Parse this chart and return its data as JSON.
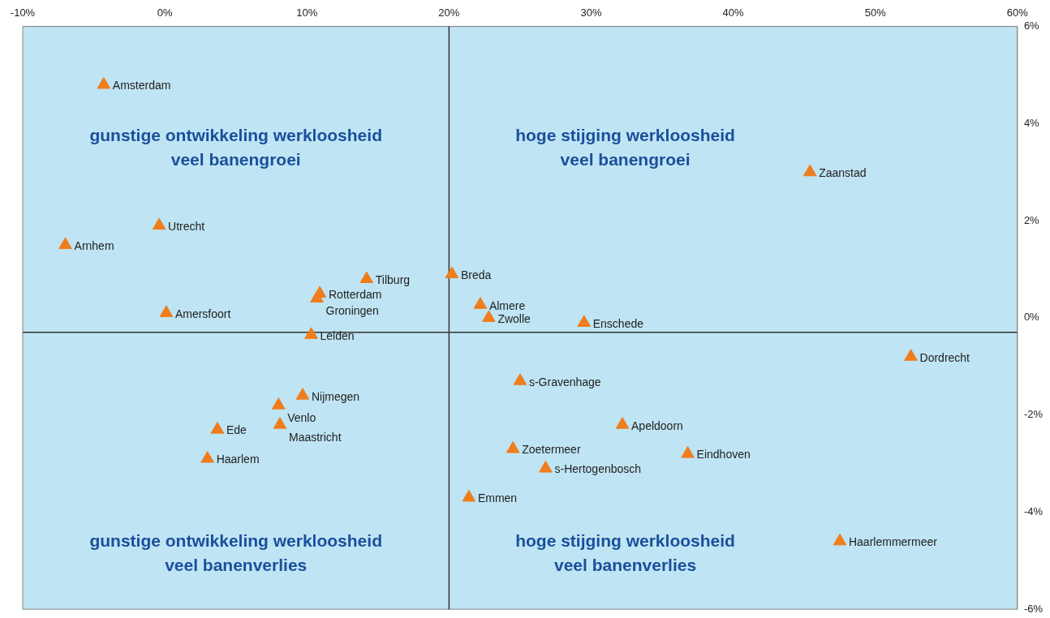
{
  "chart_data": {
    "type": "scatter",
    "marker": "triangle",
    "legend": false,
    "grid": false,
    "xlim": [
      -10,
      60
    ],
    "xticks": [
      {
        "value": -10,
        "label": "-10%"
      },
      {
        "value": 0,
        "label": "0%"
      },
      {
        "value": 10,
        "label": "10%"
      },
      {
        "value": 20,
        "label": "20%"
      },
      {
        "value": 30,
        "label": "30%"
      },
      {
        "value": 40,
        "label": "40%"
      },
      {
        "value": 50,
        "label": "50%"
      },
      {
        "value": 60,
        "label": "60%"
      }
    ],
    "ylim": [
      -6,
      6
    ],
    "yticks": [
      {
        "value": -6,
        "label": "-6%"
      },
      {
        "value": -4,
        "label": "-4%"
      },
      {
        "value": -2,
        "label": "-2%"
      },
      {
        "value": 0,
        "label": "0%"
      },
      {
        "value": 2,
        "label": "2%"
      },
      {
        "value": 4,
        "label": "4%"
      },
      {
        "value": 6,
        "label": "6%"
      }
    ],
    "ref_lines": [
      {
        "axis": "x",
        "value": 20,
        "color": "#333333"
      },
      {
        "axis": "y",
        "value": -0.3,
        "color": "#333333"
      }
    ],
    "annotations": [
      "gunstige ontwikkeling werkloosheid\nveel banengroei",
      "hoge stijging werkloosheid\nveel banengroei",
      "gunstige ontwikkeling werkloosheid\nveel banenverlies",
      "hoge stijging werkloosheid\nveel banenverlies"
    ],
    "series": [
      {
        "name": "Amsterdam",
        "color": "#f07d1c",
        "x": [
          -4.3
        ],
        "values": [
          4.8
        ]
      },
      {
        "name": "Utrecht",
        "color": "#f07d1c",
        "x": [
          -0.4
        ],
        "values": [
          1.9
        ]
      },
      {
        "name": "Arnhem",
        "color": "#f07d1c",
        "x": [
          -7.0
        ],
        "values": [
          1.5
        ]
      },
      {
        "name": "Amersfoort",
        "color": "#f07d1c",
        "x": [
          0.1
        ],
        "values": [
          0.1
        ]
      },
      {
        "name": "Tilburg",
        "color": "#f07d1c",
        "x": [
          14.2
        ],
        "values": [
          0.8
        ]
      },
      {
        "name": "Rotterdam",
        "color": "#f07d1c",
        "x": [
          10.9
        ],
        "values": [
          0.5
        ]
      },
      {
        "name": "Groningen",
        "color": "#f07d1c",
        "x": [
          10.7
        ],
        "values": [
          0.4
        ]
      },
      {
        "name": "Leiden",
        "color": "#f07d1c",
        "x": [
          10.3
        ],
        "values": [
          -0.35
        ]
      },
      {
        "name": "Breda",
        "color": "#f07d1c",
        "x": [
          20.2
        ],
        "values": [
          0.9
        ]
      },
      {
        "name": "Almere",
        "color": "#f07d1c",
        "x": [
          22.2
        ],
        "values": [
          0.27
        ]
      },
      {
        "name": "Zwolle",
        "color": "#f07d1c",
        "x": [
          22.8
        ],
        "values": [
          0.0
        ]
      },
      {
        "name": "Enschede",
        "color": "#f07d1c",
        "x": [
          29.5
        ],
        "values": [
          -0.1
        ]
      },
      {
        "name": "Zaanstad",
        "color": "#f07d1c",
        "x": [
          45.4
        ],
        "values": [
          3.0
        ]
      },
      {
        "name": "Dordrecht",
        "color": "#f07d1c",
        "x": [
          52.5
        ],
        "values": [
          -0.8
        ]
      },
      {
        "name": "s-Gravenhage",
        "color": "#f07d1c",
        "x": [
          25.0
        ],
        "values": [
          -1.3
        ]
      },
      {
        "name": "Apeldoorn",
        "color": "#f07d1c",
        "x": [
          32.2
        ],
        "values": [
          -2.2
        ]
      },
      {
        "name": "Eindhoven",
        "color": "#f07d1c",
        "x": [
          36.8
        ],
        "values": [
          -2.8
        ]
      },
      {
        "name": "Zoetermeer",
        "color": "#f07d1c",
        "x": [
          24.5
        ],
        "values": [
          -2.7
        ]
      },
      {
        "name": "s-Hertogenbosch",
        "color": "#f07d1c",
        "x": [
          26.8
        ],
        "values": [
          -3.1
        ]
      },
      {
        "name": "Emmen",
        "color": "#f07d1c",
        "x": [
          21.4
        ],
        "values": [
          -3.7
        ]
      },
      {
        "name": "Haarlemmermeer",
        "color": "#f07d1c",
        "x": [
          47.5
        ],
        "values": [
          -4.6
        ]
      },
      {
        "name": "Nijmegen",
        "color": "#f07d1c",
        "x": [
          9.7
        ],
        "values": [
          -1.6
        ]
      },
      {
        "name": "Venlo",
        "color": "#f07d1c",
        "x": [
          8.0
        ],
        "values": [
          -1.8
        ]
      },
      {
        "name": "Maastricht",
        "color": "#f07d1c",
        "x": [
          8.1
        ],
        "values": [
          -2.2
        ]
      },
      {
        "name": "Ede",
        "color": "#f07d1c",
        "x": [
          3.7
        ],
        "values": [
          -2.3
        ]
      },
      {
        "name": "Haarlem",
        "color": "#f07d1c",
        "x": [
          3.0
        ],
        "values": [
          -2.9
        ]
      }
    ]
  }
}
